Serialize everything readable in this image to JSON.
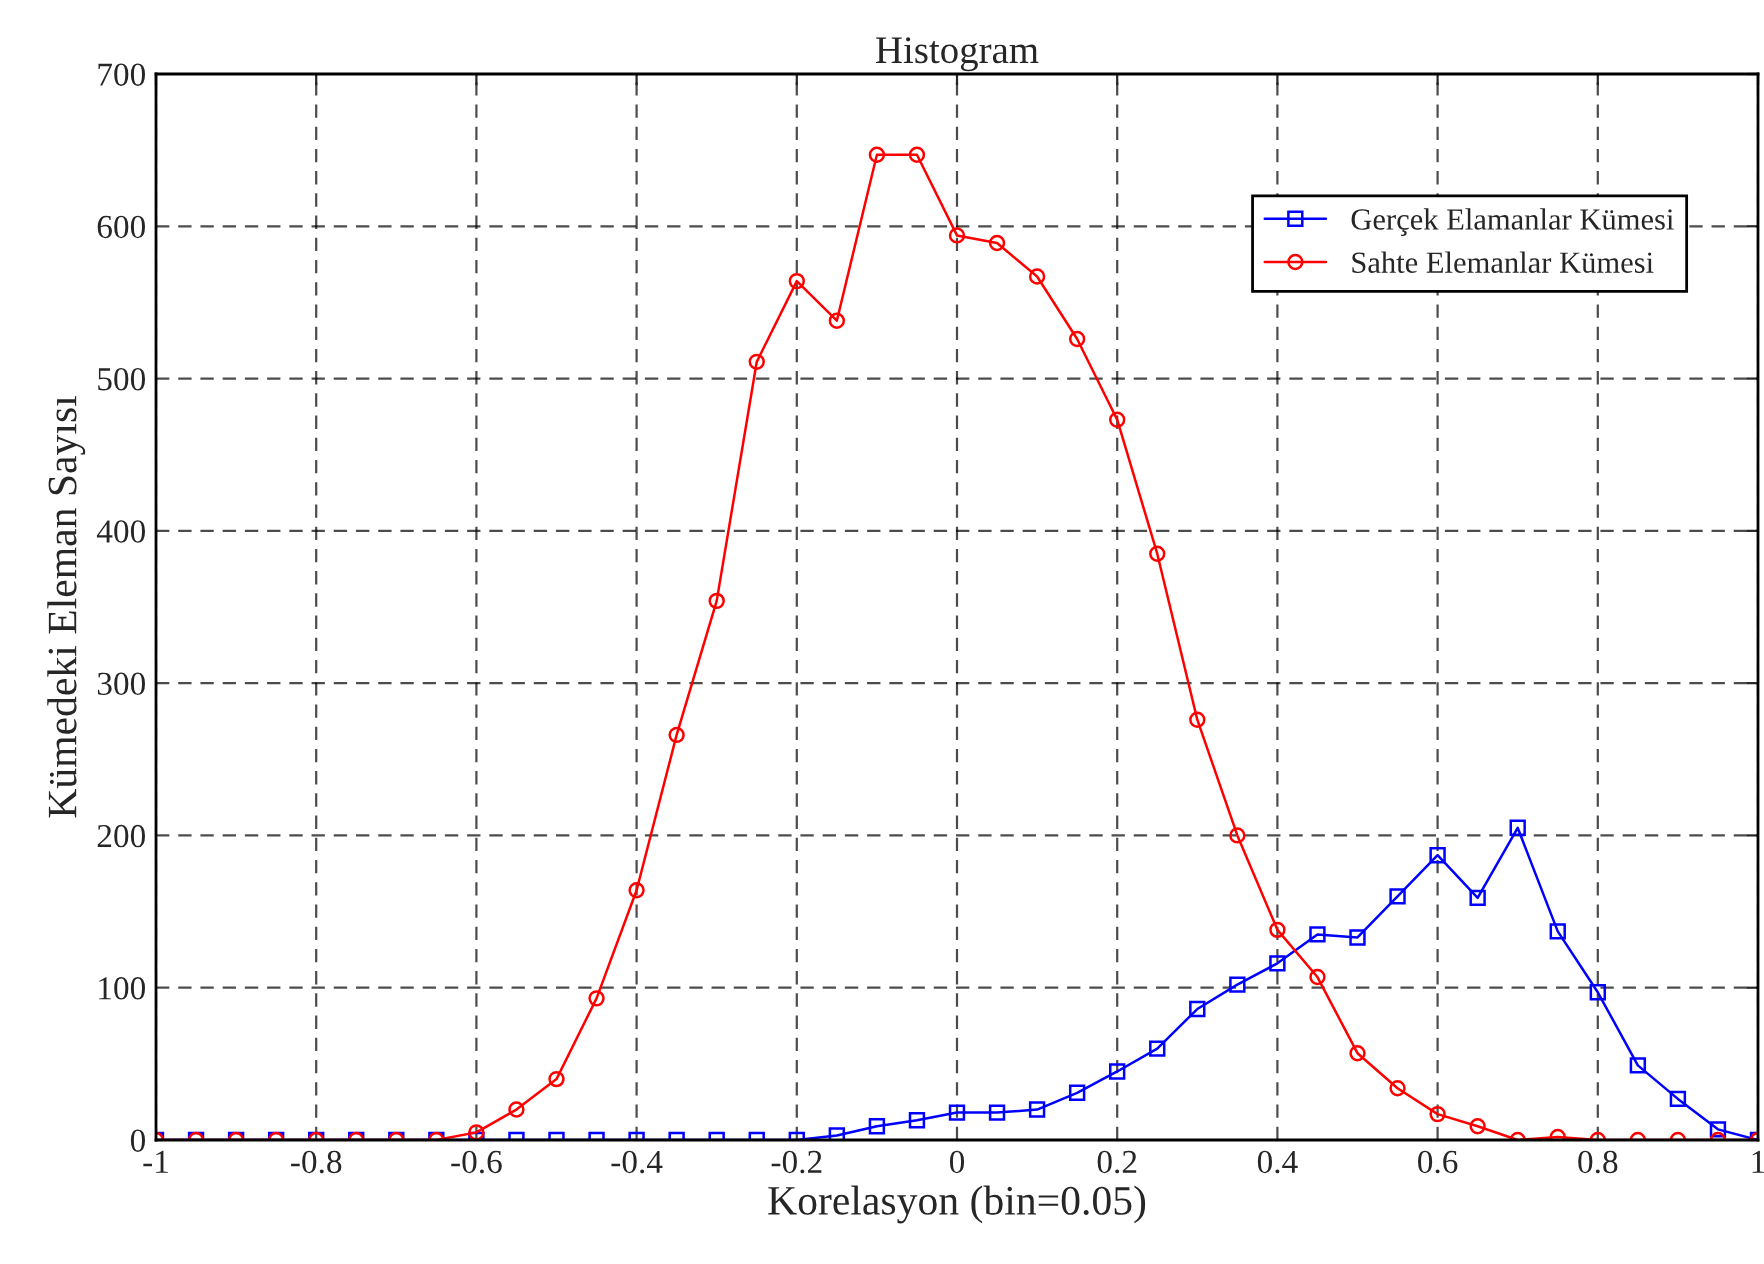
{
  "chart_data": {
    "type": "line",
    "title": "Histogram",
    "xlabel": "Korelasyon (bin=0.05)",
    "ylabel": "Kümedeki Eleman Sayısı",
    "x": [
      -1,
      -0.95,
      -0.9,
      -0.85,
      -0.8,
      -0.75,
      -0.7,
      -0.65,
      -0.6,
      -0.55,
      -0.5,
      -0.45,
      -0.4,
      -0.35,
      -0.3,
      -0.25,
      -0.2,
      -0.15,
      -0.1,
      -0.05,
      0,
      0.05,
      0.1,
      0.15,
      0.2,
      0.25,
      0.3,
      0.35,
      0.4,
      0.45,
      0.5,
      0.55,
      0.6,
      0.65,
      0.7,
      0.75,
      0.8,
      0.85,
      0.9,
      0.95,
      1
    ],
    "series": [
      {
        "name": "Gerçek Elamanlar Kümesi",
        "color": "#0000ff",
        "marker": "square",
        "values": [
          0,
          0,
          0,
          0,
          0,
          0,
          0,
          0,
          0,
          0,
          0,
          0,
          0,
          0,
          0,
          0,
          0,
          3,
          9,
          13,
          18,
          18,
          20,
          31,
          45,
          60,
          86,
          102,
          116,
          135,
          133,
          160,
          187,
          159,
          205,
          137,
          97,
          49,
          27,
          7,
          0
        ]
      },
      {
        "name": "Sahte Elemanlar Kümesi",
        "color": "#ff0000",
        "marker": "circle",
        "values": [
          0,
          0,
          0,
          0,
          0,
          0,
          0,
          0,
          5,
          20,
          40,
          93,
          164,
          266,
          354,
          511,
          564,
          538,
          647,
          647,
          594,
          589,
          567,
          526,
          473,
          385,
          276,
          200,
          138,
          107,
          57,
          34,
          17,
          9,
          0,
          2,
          0,
          0,
          0,
          0,
          0
        ]
      }
    ],
    "xlim": [
      -1,
      1
    ],
    "xticks": [
      -1,
      -0.8,
      -0.6,
      -0.4,
      -0.2,
      0,
      0.2,
      0.4,
      0.6,
      0.8,
      1
    ],
    "ylim": [
      0,
      700
    ],
    "yticks": [
      0,
      100,
      200,
      300,
      400,
      500,
      600,
      700
    ],
    "grid": true,
    "legend": "top right",
    "line_style": "solid"
  }
}
